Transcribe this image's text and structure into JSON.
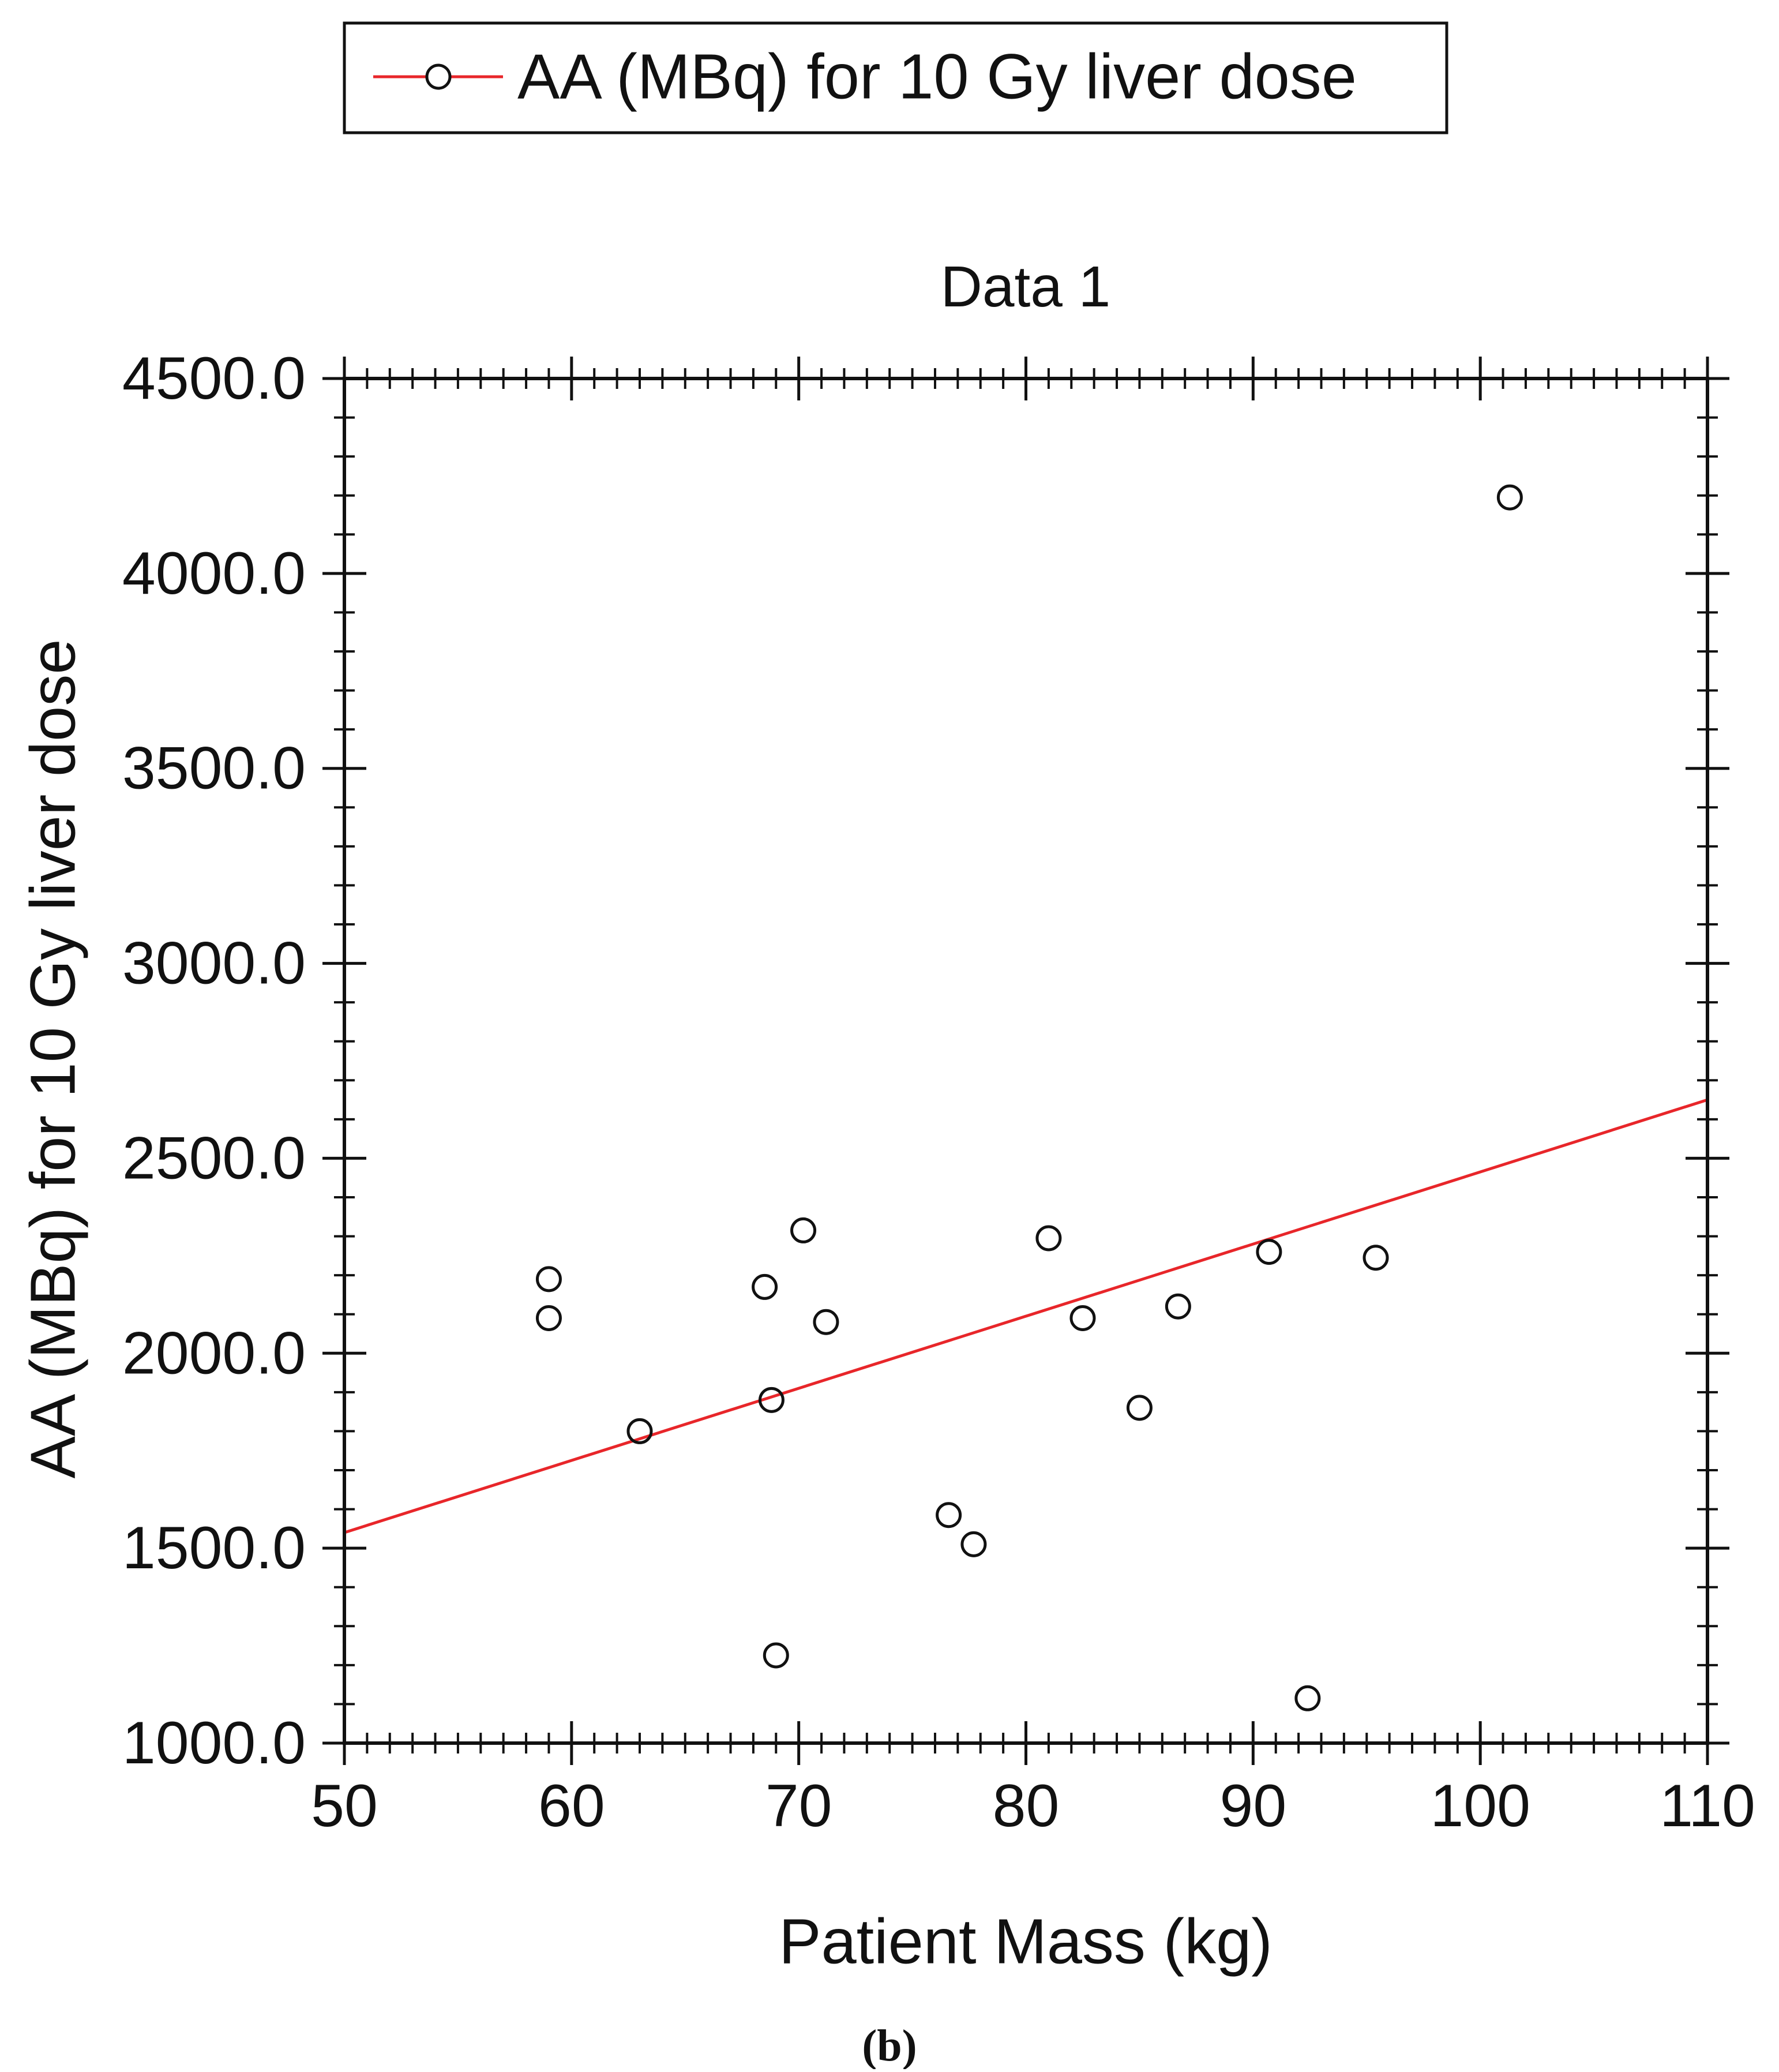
{
  "chart_data": {
    "type": "scatter",
    "title": "Data 1",
    "xlabel": "Patient Mass (kg)",
    "ylabel": "AA (MBq) for 10 Gy liver dose",
    "xlim": [
      50,
      110
    ],
    "ylim": [
      1000,
      4500
    ],
    "x_ticks": [
      "50",
      "60",
      "70",
      "80",
      "90",
      "100",
      "110"
    ],
    "y_ticks": [
      "1000.0",
      "1500.0",
      "2000.0",
      "2500.0",
      "3000.0",
      "3500.0",
      "4000.0",
      "4500.0"
    ],
    "x_tick_values": [
      50,
      60,
      70,
      80,
      90,
      100,
      110
    ],
    "y_tick_values": [
      1000,
      1500,
      2000,
      2500,
      3000,
      3500,
      4000,
      4500
    ],
    "x_minor_step": 1,
    "y_minor_step": 100,
    "grid": false,
    "legend_position": "top",
    "series": [
      {
        "name": "AA (MBq) for 10 Gy liver dose",
        "marker": "open-circle",
        "color": "#111111",
        "points": [
          {
            "x": 59.0,
            "y": 2190
          },
          {
            "x": 59.0,
            "y": 2090
          },
          {
            "x": 63.0,
            "y": 1800
          },
          {
            "x": 68.5,
            "y": 2170
          },
          {
            "x": 68.8,
            "y": 1880
          },
          {
            "x": 69.0,
            "y": 1225
          },
          {
            "x": 70.2,
            "y": 2315
          },
          {
            "x": 71.2,
            "y": 2080
          },
          {
            "x": 76.6,
            "y": 1585
          },
          {
            "x": 77.7,
            "y": 1510
          },
          {
            "x": 81.0,
            "y": 2295
          },
          {
            "x": 82.5,
            "y": 2090
          },
          {
            "x": 85.0,
            "y": 1860
          },
          {
            "x": 86.7,
            "y": 2120
          },
          {
            "x": 90.7,
            "y": 2260
          },
          {
            "x": 92.4,
            "y": 1115
          },
          {
            "x": 95.4,
            "y": 2245
          },
          {
            "x": 101.3,
            "y": 4195
          }
        ]
      }
    ],
    "fit_line": {
      "color": "#e8262a",
      "x": [
        50,
        110
      ],
      "y": [
        1540,
        2650
      ]
    }
  },
  "panel_label": "(b)"
}
